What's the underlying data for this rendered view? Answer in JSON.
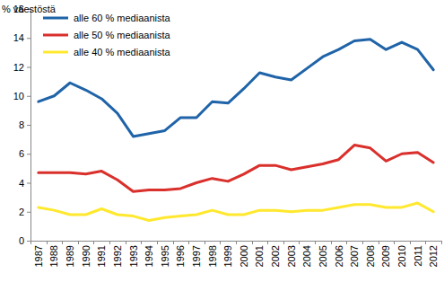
{
  "chart_data": {
    "type": "line",
    "y_label": "% väestöstä",
    "categories": [
      "1987",
      "1988",
      "1989",
      "1990",
      "1991",
      "1992",
      "1993",
      "1994",
      "1995",
      "1996",
      "1997",
      "1998",
      "1999",
      "2000",
      "2001",
      "2002",
      "2003",
      "2004",
      "2005",
      "2006",
      "2007",
      "2008",
      "2009",
      "2010",
      "2011",
      "2012"
    ],
    "series": [
      {
        "name": "alle 60 % mediaanista",
        "color": "#1f63a8",
        "values": [
          9.6,
          10.0,
          10.9,
          10.4,
          9.8,
          8.8,
          7.2,
          7.4,
          7.6,
          8.5,
          8.5,
          9.6,
          9.5,
          10.5,
          11.6,
          11.3,
          11.1,
          11.9,
          12.7,
          13.2,
          13.8,
          13.9,
          13.2,
          13.7,
          13.2,
          11.8
        ]
      },
      {
        "name": "alle 50 % mediaanista",
        "color": "#d9302c",
        "values": [
          4.7,
          4.7,
          4.7,
          4.6,
          4.8,
          4.2,
          3.4,
          3.5,
          3.5,
          3.6,
          4.0,
          4.3,
          4.1,
          4.6,
          5.2,
          5.2,
          4.9,
          5.1,
          5.3,
          5.6,
          6.6,
          6.4,
          5.5,
          6.0,
          6.1,
          5.4
        ]
      },
      {
        "name": "alle 40 % mediaanista",
        "color": "#ffe82e",
        "values": [
          2.3,
          2.1,
          1.8,
          1.8,
          2.2,
          1.8,
          1.7,
          1.4,
          1.6,
          1.7,
          1.8,
          2.1,
          1.8,
          1.8,
          2.1,
          2.1,
          2.0,
          2.1,
          2.1,
          2.3,
          2.5,
          2.5,
          2.3,
          2.3,
          2.6,
          2.0
        ]
      }
    ],
    "ylim": [
      0,
      16
    ],
    "yticks": [
      0,
      2,
      4,
      6,
      8,
      10,
      12,
      14,
      16
    ],
    "grid": false,
    "legend": "upper left"
  }
}
